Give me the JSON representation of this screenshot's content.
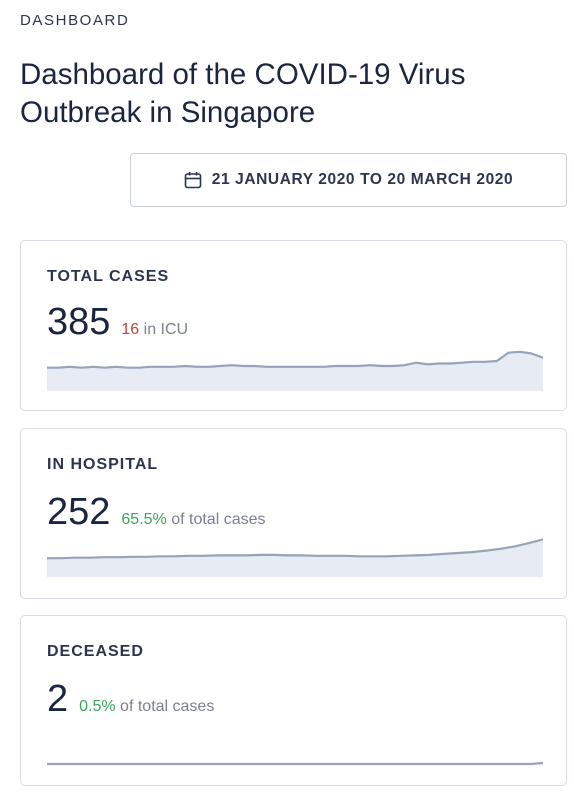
{
  "header": {
    "overline": "DASHBOARD",
    "title": "Dashboard of the COVID-19 Virus Outbreak in Singapore"
  },
  "date_range": {
    "icon": "calendar-icon",
    "label": "21 JANUARY 2020 TO 20 MARCH 2020"
  },
  "cards": {
    "total": {
      "label": "TOTAL CASES",
      "value": "385",
      "highlight": "16",
      "suffix": " in ICU",
      "highlight_color": "#c0453f",
      "spark": [
        28,
        28,
        29,
        28,
        29,
        28,
        29,
        28,
        28,
        29,
        29,
        29,
        30,
        29,
        29,
        30,
        31,
        30,
        30,
        29,
        29,
        29,
        29,
        29,
        29,
        30,
        30,
        30,
        31,
        30,
        30,
        31,
        34,
        32,
        33,
        33,
        34,
        35,
        35,
        36,
        46,
        47,
        45,
        40
      ]
    },
    "hospital": {
      "label": "IN HOSPITAL",
      "value": "252",
      "highlight": "65.5%",
      "suffix": " of total cases",
      "highlight_color": "#3aa55a",
      "spark": [
        40,
        40,
        41,
        41,
        42,
        42,
        43,
        43,
        44,
        44,
        45,
        45,
        46,
        46,
        46,
        47,
        47,
        46,
        46,
        45,
        45,
        45,
        44,
        44,
        44,
        45,
        46,
        47,
        49,
        51,
        53,
        56,
        60,
        65,
        72,
        80
      ]
    },
    "deceased": {
      "label": "DECEASED",
      "value": "2",
      "highlight": "0.5%",
      "suffix": " of total cases",
      "highlight_color": "#3aa55a",
      "spark": [
        0,
        0,
        0,
        0,
        0,
        0,
        0,
        0,
        0,
        0,
        0,
        0,
        0,
        0,
        0,
        0,
        0,
        0,
        0,
        0,
        0,
        0,
        0,
        0,
        0,
        0,
        0,
        0,
        0,
        0,
        0,
        0,
        0,
        0,
        0,
        0,
        0,
        0,
        0,
        0,
        0,
        0,
        0,
        2
      ]
    }
  },
  "colors": {
    "spark_line": "#97a3b9",
    "spark_fill": "#e7ebf3"
  }
}
